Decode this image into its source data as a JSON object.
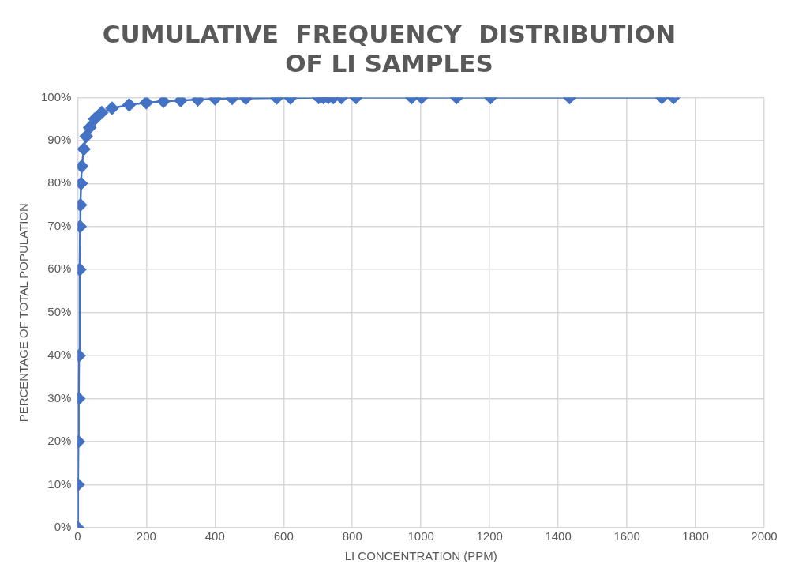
{
  "chart_data": {
    "type": "line",
    "title": [
      "CUMULATIVE  FREQUENCY  DISTRIBUTION",
      "OF LI SAMPLES"
    ],
    "xlabel": "LI CONCENTRATION (PPM)",
    "ylabel": "PERCENTAGE OF TOTAL POPULATION",
    "x": [
      0,
      1,
      2,
      3,
      4,
      6,
      7,
      8,
      10,
      12,
      18,
      25,
      35,
      50,
      70,
      100,
      150,
      200,
      250,
      300,
      350,
      400,
      450,
      490,
      580,
      620,
      702,
      716,
      730,
      745,
      768,
      811,
      973,
      1002,
      1104,
      1203,
      1433,
      1702,
      1736
    ],
    "series": [
      {
        "color": "#4472c4",
        "values": [
          0,
          10,
          20,
          30,
          40,
          60,
          70,
          75,
          80,
          84,
          88,
          91,
          93,
          95,
          96.5,
          97.5,
          98.3,
          98.8,
          99.1,
          99.3,
          99.5,
          99.7,
          99.8,
          99.8,
          99.9,
          99.9,
          100,
          100,
          100,
          100,
          100,
          100,
          100,
          100,
          100,
          100,
          100,
          100,
          100
        ]
      }
    ],
    "xlim": [
      0,
      2000
    ],
    "xticks": [
      0,
      200,
      400,
      600,
      800,
      1000,
      1200,
      1400,
      1600,
      1800,
      2000
    ],
    "ylim": [
      0,
      100
    ],
    "yticks": [
      {
        "value": 0,
        "label": "0%"
      },
      {
        "value": 10,
        "label": "10%"
      },
      {
        "value": 20,
        "label": "20%"
      },
      {
        "value": 30,
        "label": "30%"
      },
      {
        "value": 40,
        "label": "40%"
      },
      {
        "value": 50,
        "label": "50%"
      },
      {
        "value": 60,
        "label": "60%"
      },
      {
        "value": 70,
        "label": "70%"
      },
      {
        "value": 80,
        "label": "80%"
      },
      {
        "value": 90,
        "label": "90%"
      },
      {
        "value": 100,
        "label": "100%"
      }
    ],
    "grid": true,
    "legend": false,
    "marker": "diamond",
    "line_style": "solid"
  }
}
